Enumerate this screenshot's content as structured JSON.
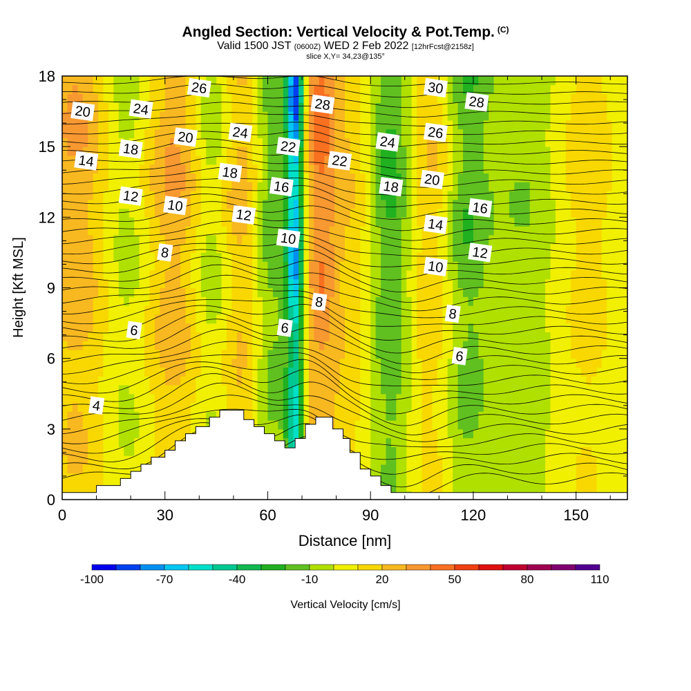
{
  "header": {
    "title": "Angled Section: Vertical Velocity & Pot.Temp.",
    "title_unit": "(C)",
    "valid_prefix": "Valid 1500 JST",
    "valid_utc": "(0600Z)",
    "valid_date": "WED 2 Feb 2022",
    "forecast": "[12hrFcst@2158z]",
    "slice": "slice X,Y= 34,23@135°"
  },
  "chart_data": {
    "type": "heatmap",
    "xlabel": "Distance [nm]",
    "ylabel": "Height [Kft MSL]",
    "xlim": [
      0,
      165
    ],
    "ylim": [
      0,
      18
    ],
    "x_ticks": [
      0,
      30,
      60,
      90,
      120,
      150
    ],
    "y_ticks": [
      0,
      3,
      6,
      9,
      12,
      15,
      18
    ],
    "colorbar": {
      "label": "Vertical Velocity [cm/s]",
      "tick_labels": [
        "-100",
        "-70",
        "-40",
        "-10",
        "20",
        "50",
        "80",
        "110"
      ],
      "tick_values": [
        -100,
        -70,
        -40,
        -10,
        20,
        50,
        80,
        110
      ],
      "levels": [
        -100,
        -90,
        -80,
        -70,
        -60,
        -50,
        -40,
        -30,
        -20,
        -10,
        0,
        10,
        20,
        30,
        40,
        50,
        60,
        70,
        80,
        90,
        100,
        110
      ],
      "colors": [
        "#0000ee",
        "#0040f0",
        "#0090f0",
        "#00c8f0",
        "#00e0c8",
        "#00c890",
        "#10b850",
        "#20b020",
        "#60c020",
        "#b0e000",
        "#f0f000",
        "#f8d800",
        "#f8b820",
        "#f89830",
        "#f87020",
        "#f04010",
        "#e01010",
        "#c00030",
        "#a00050",
        "#800070",
        "#500090"
      ]
    },
    "terrain_profile": [
      [
        0,
        0.3
      ],
      [
        10,
        0.3
      ],
      [
        10,
        0.6
      ],
      [
        17,
        0.6
      ],
      [
        17,
        0.9
      ],
      [
        20,
        0.9
      ],
      [
        20,
        1.2
      ],
      [
        23,
        1.2
      ],
      [
        23,
        1.5
      ],
      [
        26,
        1.5
      ],
      [
        26,
        1.8
      ],
      [
        30,
        1.8
      ],
      [
        30,
        2.1
      ],
      [
        33,
        2.1
      ],
      [
        33,
        2.5
      ],
      [
        36,
        2.5
      ],
      [
        36,
        2.8
      ],
      [
        39,
        2.8
      ],
      [
        39,
        3.1
      ],
      [
        43,
        3.1
      ],
      [
        43,
        3.5
      ],
      [
        46,
        3.5
      ],
      [
        46,
        3.8
      ],
      [
        53,
        3.8
      ],
      [
        53,
        3.4
      ],
      [
        56,
        3.4
      ],
      [
        56,
        3.1
      ],
      [
        59,
        3.1
      ],
      [
        59,
        2.8
      ],
      [
        62,
        2.8
      ],
      [
        62,
        2.5
      ],
      [
        65,
        2.5
      ],
      [
        65,
        2.2
      ],
      [
        68,
        2.2
      ],
      [
        68,
        2.6
      ],
      [
        71,
        2.6
      ],
      [
        71,
        3.2
      ],
      [
        74,
        3.2
      ],
      [
        74,
        3.5
      ],
      [
        79,
        3.5
      ],
      [
        79,
        3.0
      ],
      [
        82,
        3.0
      ],
      [
        82,
        2.6
      ],
      [
        84,
        2.6
      ],
      [
        84,
        2.0
      ],
      [
        87,
        2.0
      ],
      [
        87,
        1.3
      ],
      [
        90,
        1.3
      ],
      [
        90,
        1.0
      ],
      [
        93,
        1.0
      ],
      [
        93,
        0.6
      ],
      [
        96,
        0.6
      ],
      [
        96,
        0.3
      ],
      [
        165,
        0.3
      ]
    ],
    "w_field": {
      "background": 3,
      "bands": [
        {
          "x": 6,
          "width": 12,
          "w": 35
        },
        {
          "x": 18,
          "width": 10,
          "w": -25
        },
        {
          "x": 33,
          "width": 12,
          "w": 35
        },
        {
          "x": 44,
          "width": 7,
          "w": -30
        },
        {
          "x": 53,
          "width": 8,
          "w": 35
        },
        {
          "x": 60,
          "width": 6,
          "w": -35
        },
        {
          "x": 68,
          "width": 2.5,
          "w": -90
        },
        {
          "x": 75,
          "width": 5,
          "w": 40
        },
        {
          "x": 84,
          "width": 8,
          "w": 20
        },
        {
          "x": 96,
          "width": 7,
          "w": -35
        },
        {
          "x": 108,
          "width": 9,
          "w": 25
        },
        {
          "x": 117,
          "width": 7,
          "w": -30
        },
        {
          "x": 135,
          "width": 12,
          "w": -15
        },
        {
          "x": 152,
          "width": 10,
          "w": 15
        }
      ]
    },
    "theta_labels": [
      {
        "text": "20",
        "x": 6,
        "y": 16.5
      },
      {
        "text": "14",
        "x": 7,
        "y": 14.4
      },
      {
        "text": "24",
        "x": 23,
        "y": 16.6
      },
      {
        "text": "18",
        "x": 20,
        "y": 14.9
      },
      {
        "text": "12",
        "x": 20,
        "y": 12.9
      },
      {
        "text": "26",
        "x": 40,
        "y": 17.5
      },
      {
        "text": "20",
        "x": 36,
        "y": 15.4
      },
      {
        "text": "10",
        "x": 33,
        "y": 12.5
      },
      {
        "text": "8",
        "x": 30,
        "y": 10.5
      },
      {
        "text": "6",
        "x": 21,
        "y": 7.2
      },
      {
        "text": "4",
        "x": 10,
        "y": 4.0
      },
      {
        "text": "24",
        "x": 52,
        "y": 15.6
      },
      {
        "text": "18",
        "x": 49,
        "y": 13.9
      },
      {
        "text": "12",
        "x": 53,
        "y": 12.1
      },
      {
        "text": "22",
        "x": 66,
        "y": 15.0
      },
      {
        "text": "16",
        "x": 64,
        "y": 13.3
      },
      {
        "text": "10",
        "x": 66,
        "y": 11.1
      },
      {
        "text": "28",
        "x": 76,
        "y": 16.8
      },
      {
        "text": "22",
        "x": 81,
        "y": 14.4
      },
      {
        "text": "8",
        "x": 75,
        "y": 8.4
      },
      {
        "text": "6",
        "x": 65,
        "y": 7.3
      },
      {
        "text": "24",
        "x": 95,
        "y": 15.2
      },
      {
        "text": "18",
        "x": 96,
        "y": 13.3
      },
      {
        "text": "30",
        "x": 109,
        "y": 17.5
      },
      {
        "text": "26",
        "x": 109,
        "y": 15.6
      },
      {
        "text": "20",
        "x": 108,
        "y": 13.6
      },
      {
        "text": "14",
        "x": 109,
        "y": 11.7
      },
      {
        "text": "10",
        "x": 109,
        "y": 9.9
      },
      {
        "text": "28",
        "x": 121,
        "y": 16.9
      },
      {
        "text": "16",
        "x": 122,
        "y": 12.4
      },
      {
        "text": "12",
        "x": 122,
        "y": 10.5
      },
      {
        "text": "8",
        "x": 114,
        "y": 7.9
      },
      {
        "text": "6",
        "x": 116,
        "y": 6.1
      }
    ]
  }
}
